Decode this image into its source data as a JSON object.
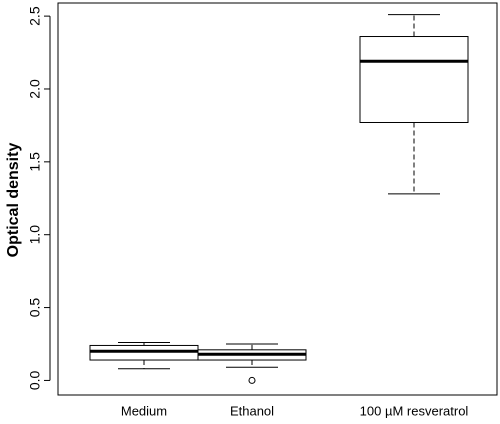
{
  "chart_data": {
    "type": "boxplot",
    "y_label": "Optical density",
    "categories": [
      "Medium",
      "Ethanol",
      "100 µM resveratrol"
    ],
    "boxes": [
      {
        "min": 0.08,
        "q1": 0.14,
        "median": 0.2,
        "q3": 0.24,
        "max": 0.26,
        "outliers": []
      },
      {
        "min": 0.09,
        "q1": 0.14,
        "median": 0.18,
        "q3": 0.21,
        "max": 0.25,
        "outliers": [
          0.0
        ]
      },
      {
        "min": 1.28,
        "q1": 1.77,
        "median": 2.19,
        "q3": 2.36,
        "max": 2.51,
        "outliers": []
      }
    ],
    "color": "#000000",
    "ylim": [
      -0.1,
      2.59
    ],
    "yticks": [
      {
        "value": 0,
        "label": "0.0"
      },
      0.5,
      {
        "value": 1,
        "label": "1.0"
      },
      1.5,
      {
        "value": 2,
        "label": "2.0"
      },
      2.5
    ]
  }
}
